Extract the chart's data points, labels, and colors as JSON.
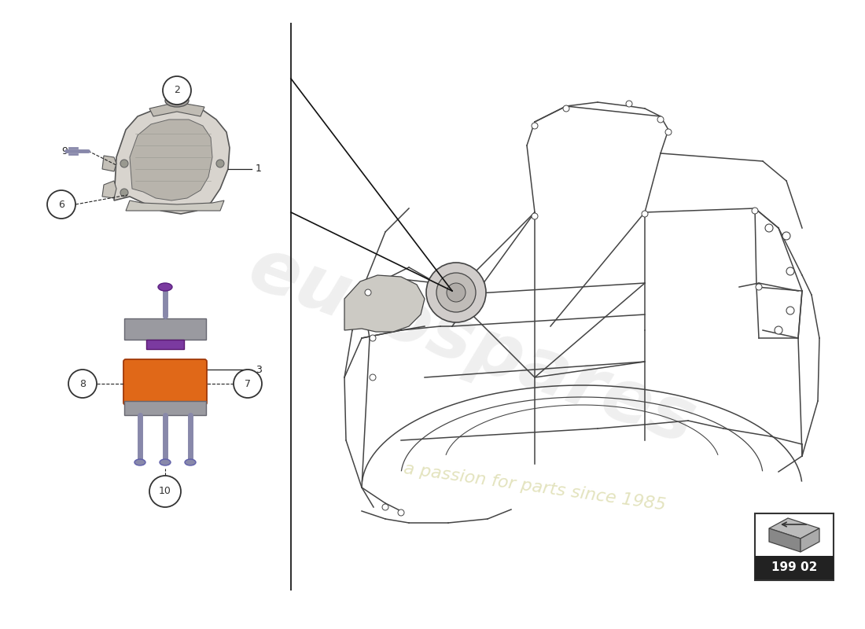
{
  "bg_color": "#ffffff",
  "diagram_code": "199 02",
  "watermark1": "eurospares",
  "watermark2": "a passion for parts since 1985",
  "fc": "#444444",
  "mount_orange": "#E06818",
  "mount_gray": "#8A8A9A",
  "mount_purple": "#7B3AA0",
  "bolt_color": "#8888AA",
  "circle_color": "#333333",
  "label_color": "#222222",
  "lw_frame": 1.1
}
